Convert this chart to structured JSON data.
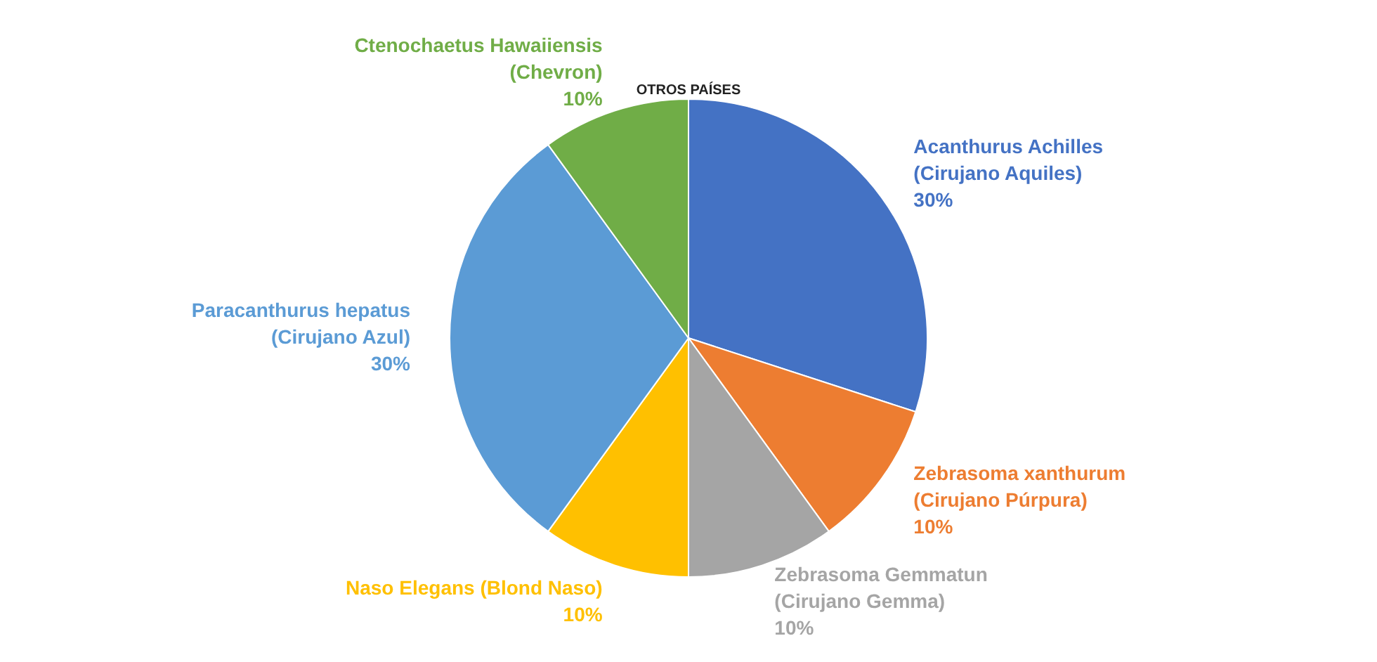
{
  "chart_data": {
    "type": "pie",
    "title": "OTROS PAÍSES",
    "categories": [
      "Acanthurus Achilles (Cirujano Aquiles)",
      "Zebrasoma xanthurum (Cirujano Púrpura)",
      "Zebrasoma Gemmatun (Cirujano Gemma)",
      "Naso Elegans (Blond Naso)",
      "Paracanthurus hepatus (Cirujano Azul)",
      "Ctenochaetus Hawaiiensis (Chevron)"
    ],
    "values": [
      30,
      10,
      10,
      10,
      30,
      10
    ],
    "value_labels": [
      "30%",
      "10%",
      "10%",
      "10%",
      "30%",
      "10%"
    ],
    "colors": [
      "#4472c4",
      "#ed7d31",
      "#a5a5a5",
      "#ffc000",
      "#5b9bd5",
      "#70ad47"
    ],
    "legend": false
  }
}
